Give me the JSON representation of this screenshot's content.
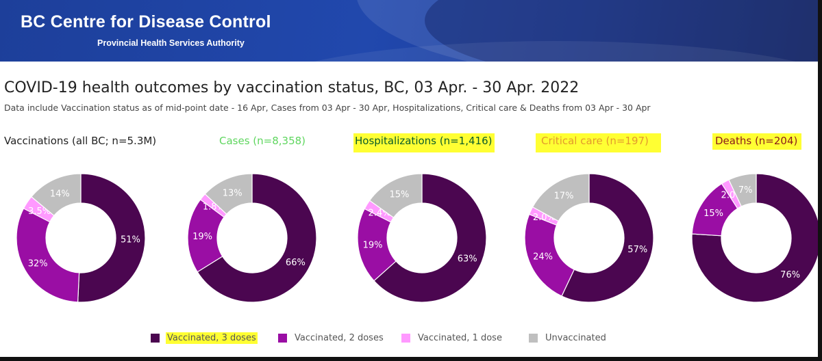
{
  "header": {
    "org_name": "BC Centre for Disease Control",
    "org_subtitle": "Provincial Health Services Authority"
  },
  "colors": {
    "banner": "#1f44a6",
    "highlight": "#ffff33",
    "cases_text": "#5ed65e",
    "hosp_text": "#0a5c2a",
    "crit_text": "#e39a2d",
    "deaths_text": "#8a1a1a",
    "vacc3": "#4b0650",
    "vacc2": "#9a0ea4",
    "vacc1": "#ff99ff",
    "unvacc": "#bfbfbf"
  },
  "chart_data": {
    "type": "pie",
    "title": "COVID-19 health outcomes by vaccination status, BC,  03 Apr. - 30 Apr. 2022",
    "subtitle": "Data include Vaccination status as of mid-point date - 16 Apr, Cases  from  03 Apr - 30 Apr, Hospitalizations, Critical care & Deaths from 03 Apr - 30 Apr",
    "categories": [
      "Vaccinated, 3 doses",
      "Vaccinated, 2 doses",
      "Vaccinated, 1 dose",
      "Unvaccinated"
    ],
    "series": [
      {
        "name": "Vaccinations (all BC; n=5.3M)",
        "values": [
          51,
          32,
          3.5,
          14
        ],
        "labels": [
          "51%",
          "32%",
          "3.5%",
          "14%"
        ]
      },
      {
        "name": "Cases (n=8,358)",
        "values": [
          66,
          19,
          1.8,
          13
        ],
        "labels": [
          "66%",
          "19%",
          "1.8%",
          "13%"
        ]
      },
      {
        "name": "Hospitalizations (n=1,416)",
        "values": [
          63,
          19,
          2.4,
          15
        ],
        "labels": [
          "63%",
          "19%",
          "2.4%",
          "15%"
        ]
      },
      {
        "name": "Critical care (n=197)",
        "values": [
          57,
          24,
          2.0,
          17
        ],
        "labels": [
          "57%",
          "24%",
          "2.0%",
          "17%"
        ]
      },
      {
        "name": "Deaths (n=204)",
        "values": [
          76,
          15,
          2.0,
          7
        ],
        "labels": [
          "76%",
          "15%",
          "2.0%",
          "7%"
        ]
      }
    ],
    "legend": [
      "Vaccinated, 3 doses",
      "Vaccinated, 2 doses",
      "Vaccinated, 1 dose",
      "Unvaccinated"
    ]
  }
}
